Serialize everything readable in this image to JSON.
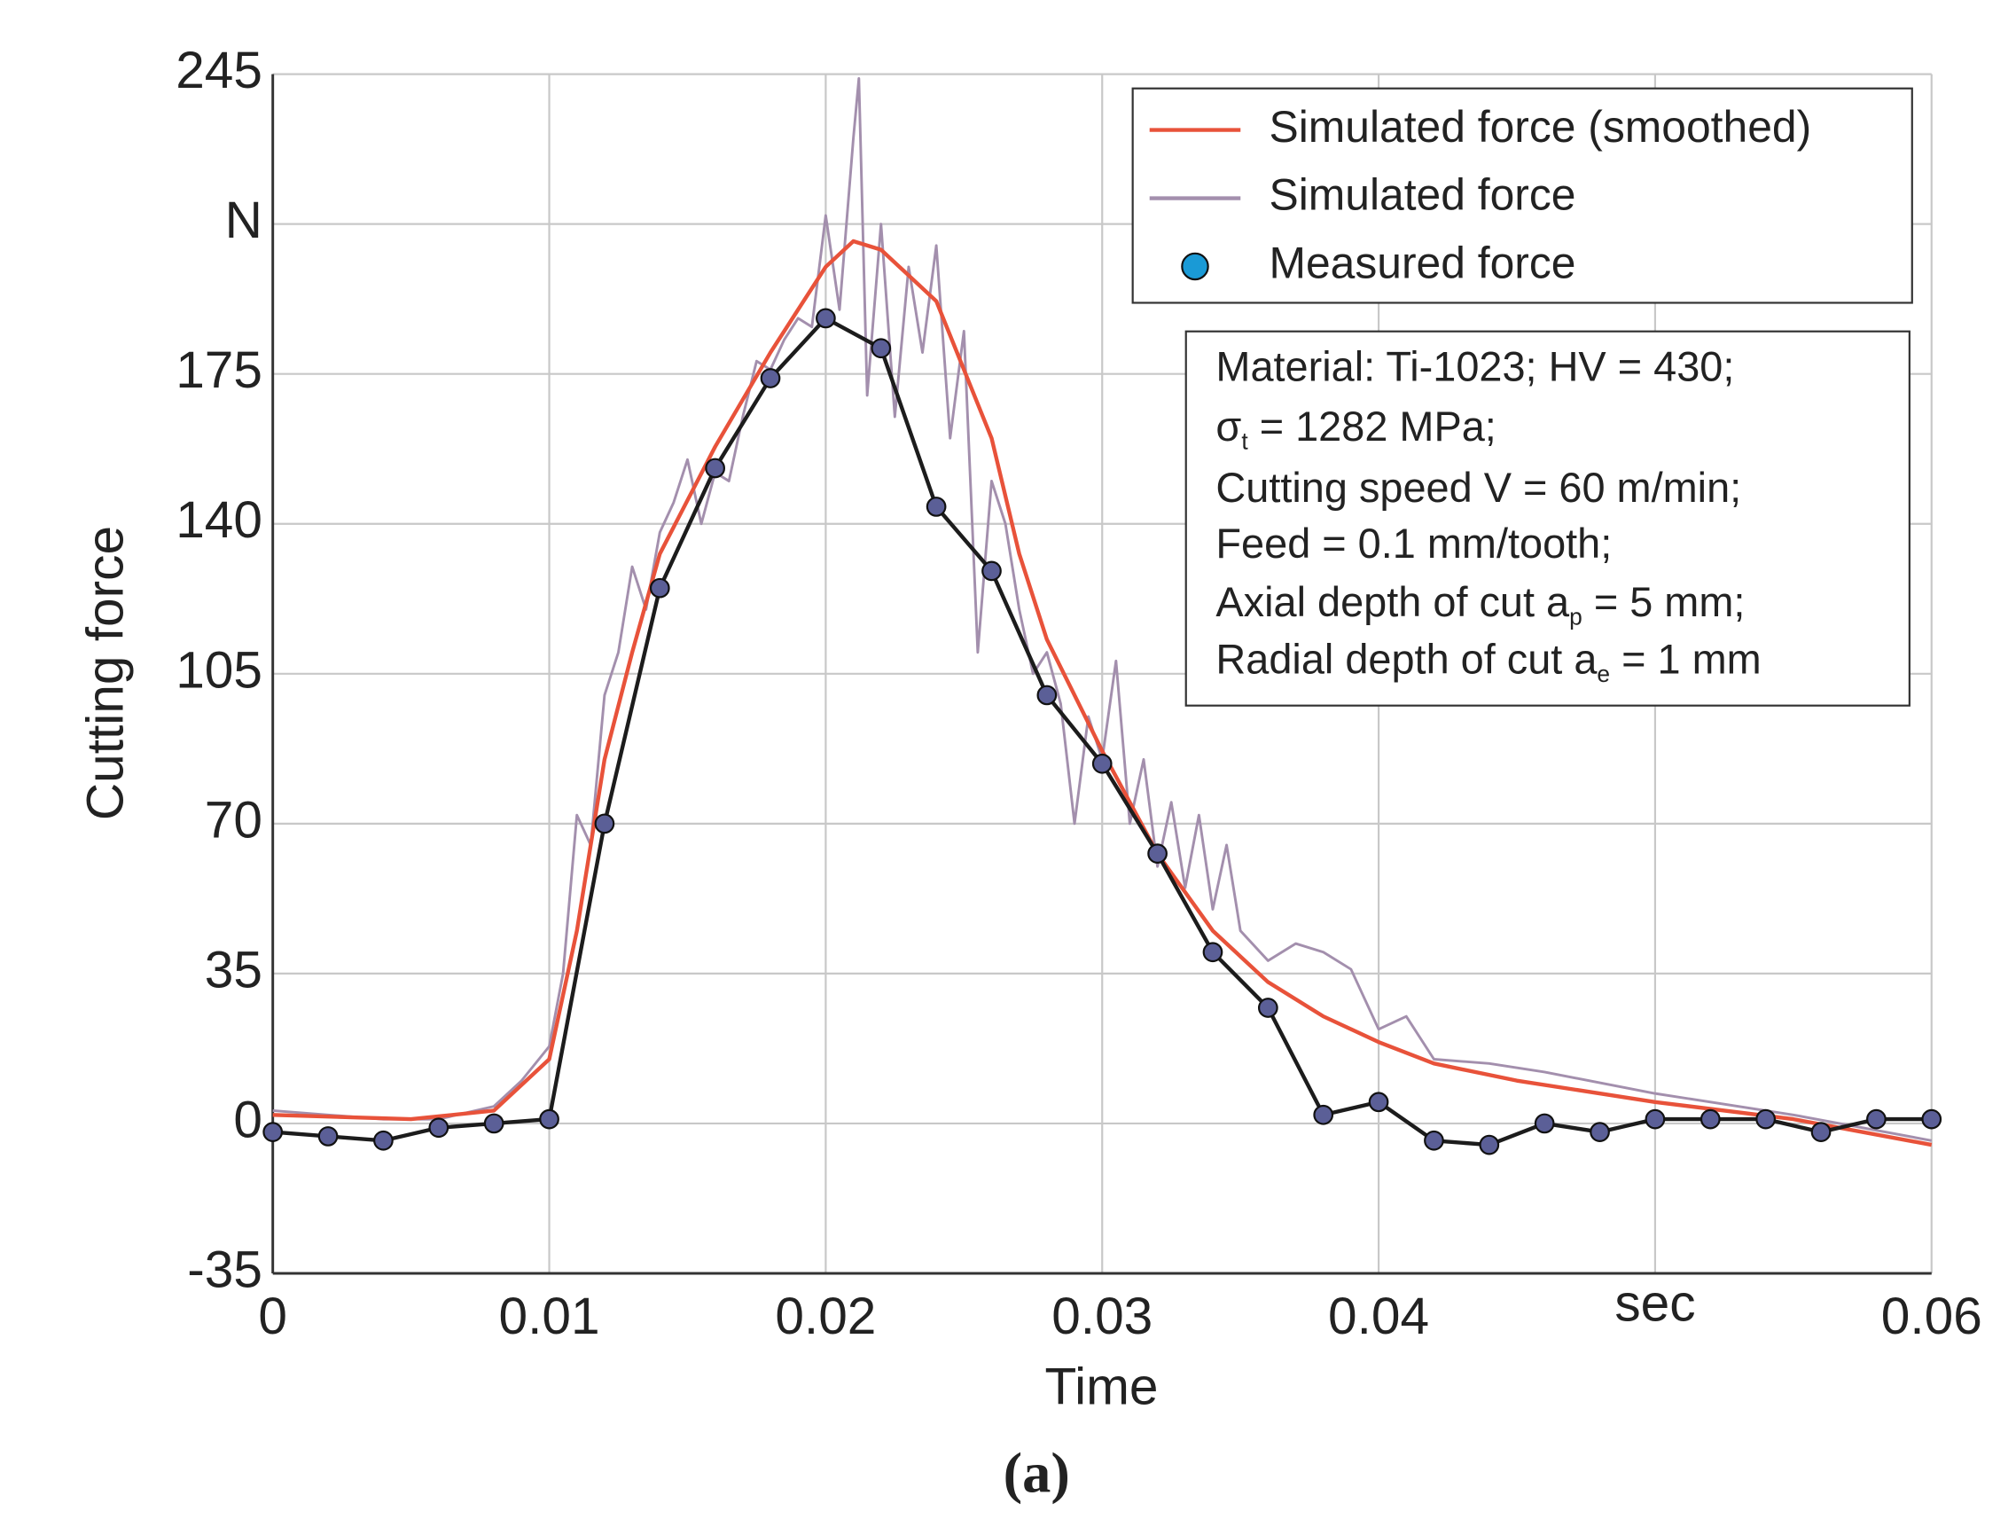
{
  "chart_data": {
    "type": "line",
    "xlabel": "Time",
    "ylabel": "Cutting force",
    "caption": "(a)",
    "xlim": [
      0,
      0.06
    ],
    "ylim": [
      -35,
      245
    ],
    "xticks": [
      0,
      0.01,
      0.02,
      0.03,
      0.04,
      {
        "value": 0.05,
        "label": "sec"
      },
      0.06
    ],
    "yticks": [
      -35,
      0,
      35,
      70,
      105,
      140,
      175,
      {
        "value": 210,
        "label": "N"
      },
      245
    ],
    "grid": true,
    "legend": "upper right",
    "series": [
      {
        "name": "Simulated force (smoothed)",
        "color": "#e8523a",
        "x": [
          0,
          0.005,
          0.008,
          0.01,
          0.011,
          0.012,
          0.013,
          0.014,
          0.016,
          0.018,
          0.02,
          0.021,
          0.022,
          0.024,
          0.026,
          0.027,
          0.028,
          0.03,
          0.032,
          0.034,
          0.036,
          0.038,
          0.04,
          0.042,
          0.045,
          0.05,
          0.055,
          0.06
        ],
        "values": [
          2,
          1,
          3,
          15,
          45,
          85,
          110,
          133,
          158,
          180,
          200,
          206,
          204,
          192,
          160,
          133,
          113,
          87,
          63,
          45,
          33,
          25,
          19,
          14,
          10,
          5,
          1,
          -5
        ]
      },
      {
        "name": "Simulated force",
        "color": "#a38fad",
        "x": [
          0,
          0.002,
          0.004,
          0.006,
          0.008,
          0.009,
          0.01,
          0.0105,
          0.011,
          0.0115,
          0.012,
          0.0125,
          0.013,
          0.0135,
          0.014,
          0.0145,
          0.015,
          0.0155,
          0.016,
          0.0165,
          0.017,
          0.0175,
          0.018,
          0.0185,
          0.019,
          0.0195,
          0.02,
          0.0205,
          0.021,
          0.0212,
          0.0215,
          0.022,
          0.0225,
          0.023,
          0.0235,
          0.024,
          0.0245,
          0.025,
          0.0255,
          0.026,
          0.0265,
          0.027,
          0.0275,
          0.028,
          0.0285,
          0.029,
          0.0295,
          0.03,
          0.0305,
          0.031,
          0.0315,
          0.032,
          0.0325,
          0.033,
          0.0335,
          0.034,
          0.0345,
          0.035,
          0.036,
          0.037,
          0.038,
          0.039,
          0.04,
          0.041,
          0.042,
          0.044,
          0.046,
          0.05,
          0.055,
          0.06
        ],
        "values": [
          3,
          2,
          1,
          1,
          4,
          10,
          18,
          35,
          72,
          65,
          100,
          110,
          130,
          120,
          138,
          145,
          155,
          140,
          152,
          150,
          165,
          178,
          176,
          183,
          188,
          186,
          212,
          190,
          230,
          244,
          170,
          210,
          165,
          200,
          180,
          205,
          160,
          185,
          110,
          150,
          140,
          120,
          105,
          110,
          98,
          70,
          95,
          85,
          108,
          70,
          85,
          60,
          75,
          55,
          72,
          50,
          65,
          45,
          38,
          42,
          40,
          36,
          22,
          25,
          15,
          14,
          12,
          7,
          2,
          -4
        ]
      },
      {
        "name": "Measured force",
        "color": "#1c1c1c",
        "marker_color": "#5b5f97",
        "x": [
          0,
          0.002,
          0.004,
          0.006,
          0.008,
          0.01,
          0.012,
          0.014,
          0.016,
          0.018,
          0.02,
          0.022,
          0.024,
          0.026,
          0.028,
          0.03,
          0.032,
          0.034,
          0.036,
          0.038,
          0.04,
          0.042,
          0.044,
          0.046,
          0.048,
          0.05,
          0.052,
          0.054,
          0.056,
          0.058,
          0.06
        ],
        "values": [
          -2,
          -3,
          -4,
          -1,
          0,
          1,
          70,
          125,
          153,
          174,
          188,
          181,
          144,
          129,
          100,
          84,
          63,
          40,
          27,
          2,
          5,
          -4,
          -5,
          0,
          -2,
          1,
          1,
          1,
          -2,
          1,
          1
        ]
      }
    ],
    "annotation": [
      [
        "Material: Ti-1023; HV = 430;"
      ],
      [
        "σ",
        "t",
        " = 1282 MPa;"
      ],
      [
        "Cutting speed V = 60 m/min;"
      ],
      [
        "Feed = 0.1 mm/tooth;"
      ],
      [
        "Axial depth of cut a",
        "p",
        " = 5 mm;"
      ],
      [
        "Radial depth of cut a",
        "e",
        " = 1 mm"
      ]
    ]
  }
}
